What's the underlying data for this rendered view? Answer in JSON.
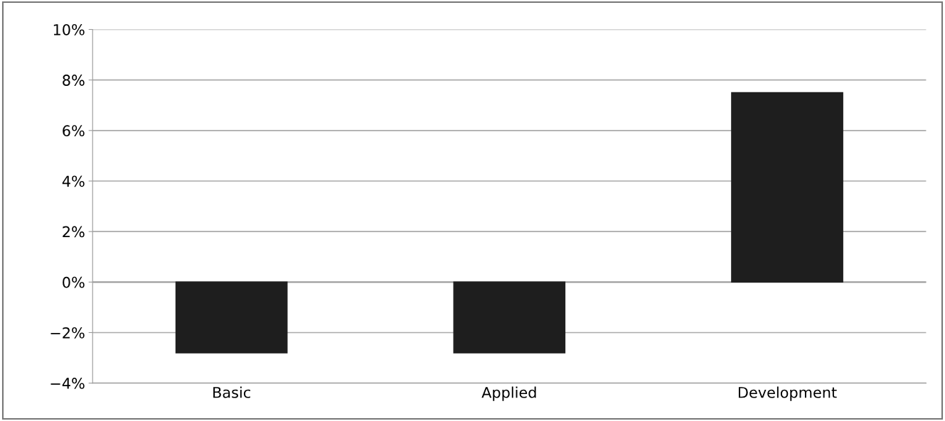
{
  "chart_data": {
    "type": "bar",
    "categories": [
      "Basic",
      "Applied",
      "Development"
    ],
    "values": [
      -2.8,
      -2.8,
      7.5
    ],
    "color": "#1e1e1e",
    "ylim": [
      -4,
      10
    ],
    "yticks": [
      {
        "value": -4,
        "label": "−4%"
      },
      {
        "value": -2,
        "label": "−2%"
      },
      {
        "value": 0,
        "label": "0%"
      },
      {
        "value": 2,
        "label": "2%"
      },
      {
        "value": 4,
        "label": "4%"
      },
      {
        "value": 6,
        "label": "6%"
      },
      {
        "value": 8,
        "label": "8%"
      },
      {
        "value": 10,
        "label": "10%"
      }
    ],
    "grid": "y"
  }
}
